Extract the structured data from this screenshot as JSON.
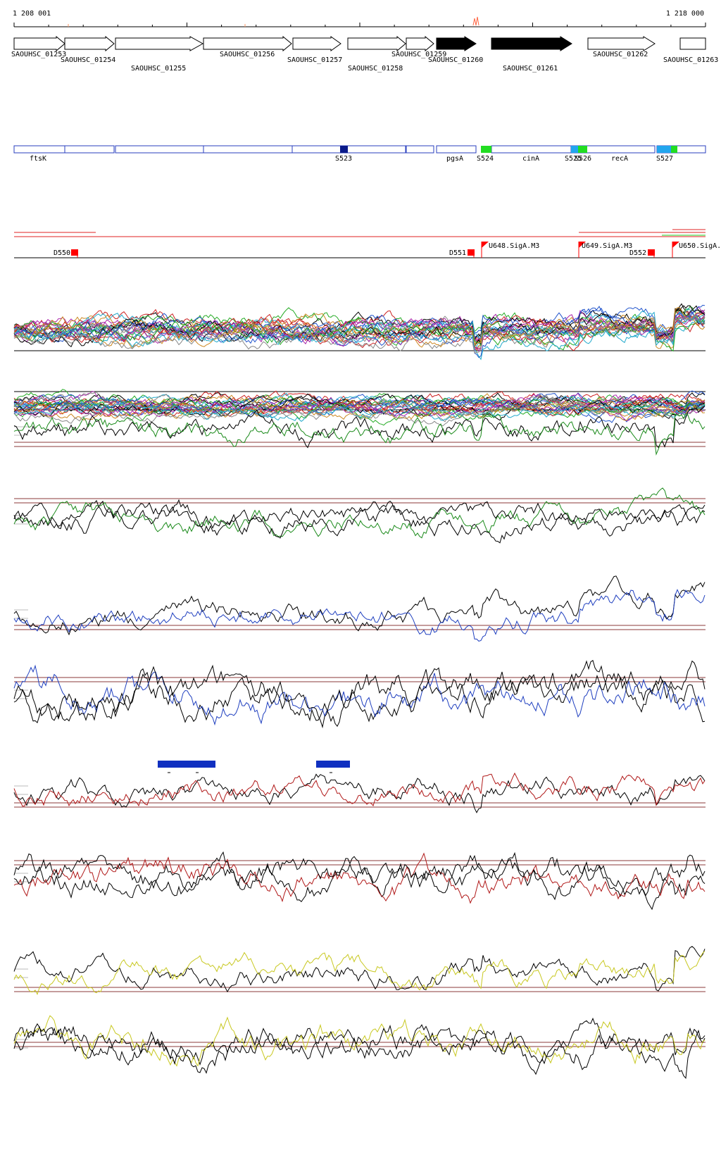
{
  "ruler": {
    "start_label": "1 208 001",
    "end_label": "1 218 000"
  },
  "genes": [
    {
      "name": "SAOUHSC_01253",
      "strand": "+",
      "filled": false,
      "label_row": 0
    },
    {
      "name": "SAOUHSC_01254",
      "strand": "+",
      "filled": false,
      "label_row": 1
    },
    {
      "name": "SAOUHSC_01255",
      "strand": "+",
      "filled": false,
      "label_row": 2
    },
    {
      "name": "SAOUHSC_01256",
      "strand": "+",
      "filled": false,
      "label_row": 0
    },
    {
      "name": "SAOUHSC_01257",
      "strand": "+",
      "filled": false,
      "label_row": 1
    },
    {
      "name": "SAOUHSC_01258",
      "strand": "+",
      "filled": false,
      "label_row": 2
    },
    {
      "name": "SAOUHSC_01259",
      "strand": "+",
      "filled": false,
      "label_row": 0
    },
    {
      "name": "SAOUHSC_01260",
      "strand": "+",
      "filled": true,
      "label_row": 1
    },
    {
      "name": "SAOUHSC_01261",
      "strand": "+",
      "filled": true,
      "label_row": 2
    },
    {
      "name": "SAOUHSC_01262",
      "strand": "+",
      "filled": false,
      "label_row": 0
    },
    {
      "name": "SAOUHSC_01263",
      "strand": "+",
      "filled": false,
      "label_row": 1
    }
  ],
  "segments": {
    "labels": [
      "ftsK",
      "S523",
      "pgsA",
      "S524",
      "cinA",
      "S525",
      "S526",
      "recA",
      "S527"
    ],
    "colors": {
      "outline": "#2a3fbf",
      "dark": "#0a1a8a",
      "green": "#22dd22",
      "cyan": "#22a6ee"
    }
  },
  "features": {
    "labels": [
      "D550",
      "D551",
      "U648.SigA.M3",
      "U649.SigA.M3",
      "D552",
      "U650.SigA."
    ],
    "colors": {
      "line": "#e02020",
      "marker": "#ff0000"
    }
  },
  "tracks": [
    {
      "name": "multi-condition-track-1",
      "colors": [
        "#000000",
        "#cc2222",
        "#22aa22",
        "#2255cc",
        "#aa22aa",
        "#cc8822",
        "#22aacc",
        "#888888"
      ]
    },
    {
      "name": "multi-condition-track-2",
      "colors": [
        "#000000",
        "#cc2222",
        "#22aa22",
        "#2255cc",
        "#aa22aa",
        "#cc8822",
        "#22aacc",
        "#888888"
      ]
    },
    {
      "name": "green-track-1",
      "colors": [
        "#000000",
        "#1a8a1a"
      ]
    },
    {
      "name": "green-track-2",
      "colors": [
        "#000000",
        "#1a8a1a"
      ]
    },
    {
      "name": "blue-track-1",
      "colors": [
        "#000000",
        "#1f3fbf"
      ]
    },
    {
      "name": "blue-track-2",
      "colors": [
        "#000000",
        "#1f3fbf"
      ]
    },
    {
      "name": "red-track-1",
      "colors": [
        "#000000",
        "#b01818"
      ]
    },
    {
      "name": "red-track-2",
      "colors": [
        "#000000",
        "#b01818"
      ]
    },
    {
      "name": "yellow-track-1",
      "colors": [
        "#000000",
        "#c8c820"
      ]
    },
    {
      "name": "yellow-track-2",
      "colors": [
        "#000000",
        "#c8c820"
      ]
    }
  ],
  "blue_blocks": {
    "color": "#1030c0"
  }
}
